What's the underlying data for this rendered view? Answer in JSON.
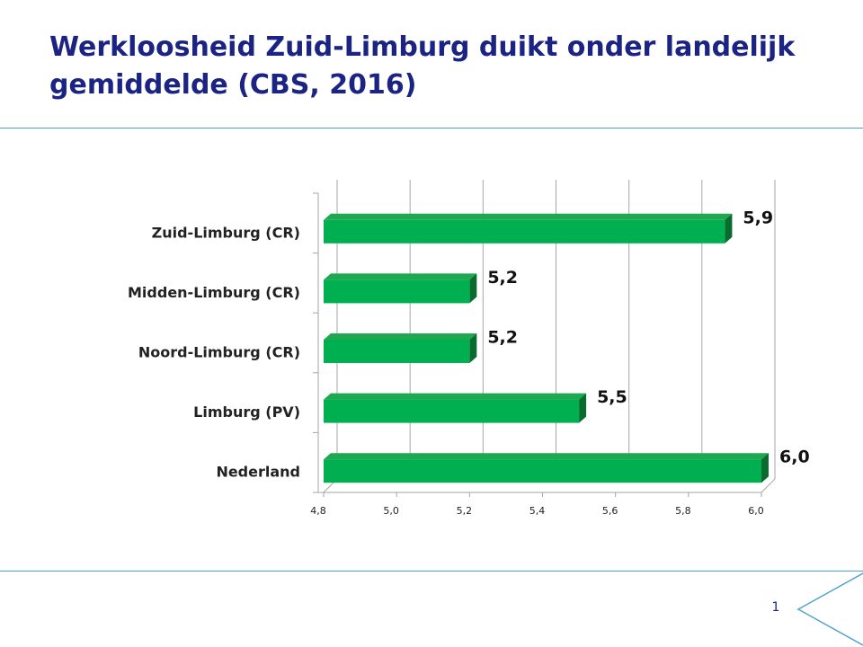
{
  "slide": {
    "title": "Werkloosheid Zuid-Limburg duikt onder landelijk gemiddelde (CBS, 2016)",
    "page_number": "1"
  },
  "colors": {
    "title": "#1b2483",
    "rule": "#4fa3cf",
    "bar_front": "#00b050",
    "bar_top": "#1fa84f",
    "bar_side": "#0a6b2e",
    "gridline": "#a6a6a6"
  },
  "chart_data": {
    "type": "bar",
    "orientation": "horizontal",
    "style": "3d",
    "categories": [
      "Zuid-Limburg (CR)",
      "Midden-Limburg (CR)",
      "Noord-Limburg (CR)",
      "Limburg (PV)",
      "Nederland"
    ],
    "values": [
      5.9,
      5.2,
      5.2,
      5.5,
      6.0
    ],
    "value_labels": [
      "5,9",
      "5,2",
      "5,2",
      "5,5",
      "6,0"
    ],
    "xlim": [
      4.8,
      6.0
    ],
    "x_ticks": [
      4.8,
      5.0,
      5.2,
      5.4,
      5.6,
      5.8,
      6.0
    ],
    "x_tick_labels": [
      "4,8",
      "5,0",
      "5,2",
      "5,4",
      "5,6",
      "5,8",
      "6,0"
    ],
    "grid": true,
    "legend": false,
    "title": "",
    "xlabel": "",
    "ylabel": ""
  }
}
